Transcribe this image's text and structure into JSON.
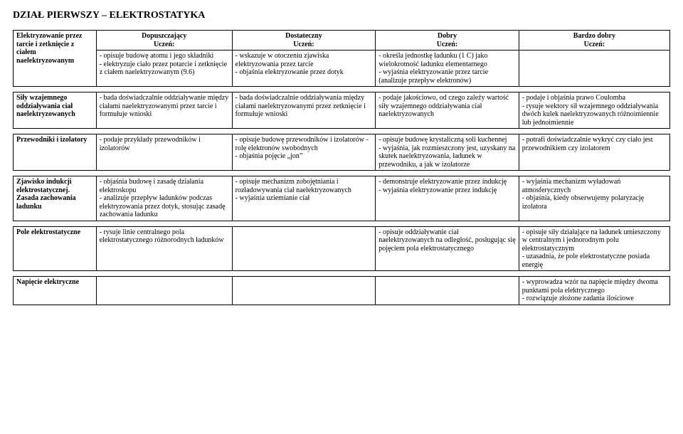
{
  "title": "DZIAŁ PIERWSZY – ELEKTROSTATYKA",
  "headers": {
    "dop": "Dopuszczający",
    "dst": "Dostateczny",
    "db": "Dobry",
    "bdb": "Bardzo dobry",
    "sub": "Uczeń:"
  },
  "rows": [
    {
      "topic": "Elektryzowanie przez tarcie i zetknięcie z ciałem naelektryzowanym",
      "c1": "- opisuje budowę atomu i jego składniki\n- elektryzuje ciało przez potarcie i zetknięcie z ciałem naelektryzowanym (9.6)",
      "c2": "- wskazuje w otoczeniu zjawiska elektryzowania przez tarcie\n- objaśnia elektryzowanie przez dotyk",
      "c3": "- określa jednostkę ładunku (1 C) jako wielokrotność ładunku elementarnego\n- wyjaśnia elektryzowanie przez tarcie (analizuje przepływ elektronów)",
      "c4": ""
    },
    {
      "topic": "Siły wzajemnego oddziaływania ciał naelektryzowanych",
      "c1": "- bada doświadczalnie oddziaływanie między ciałami naelektryzowanymi przez tarcie i formułuje wnioski",
      "c2": "- bada doświadczalnie oddziaływania między ciałami naelektryzowanymi przez zetknięcie i formułuje wnioski",
      "c3": "- podaje jakościowo, od czego zależy wartość siły wzajemnego oddziaływania ciał naelektryzowanych",
      "c4": "- podaje i objaśnia prawo Coulomba\n- rysuje wektory sił wzajemnego oddziaływania dwóch kulek naelektryzowanych różnoimiennie lub jednoimiennie"
    },
    {
      "topic": "Przewodniki i izolatory",
      "c1": "- podaje przykłady przewodników i izolatorów",
      "c2": "- opisuje budowę przewodników i izolatorów -rolę elektronów swobodnych\n- objaśnia pojęcie „jon”",
      "c3": "- opisuje budowę krystaliczną soli kuchennej\n- wyjaśnia, jak rozmieszczony jest, uzyskany na skutek naelektryzowania, ładunek w przewodniku, a jak w izolatorze",
      "c4": "- potrafi doświadczalnie wykryć czy ciało jest przewodnikiem czy izolatorem"
    },
    {
      "topic": "Zjawisko indukcji elektrostatycznej. Zasada zachowania ładunku",
      "c1": "- objaśnia budowę i zasadę działania elektroskopu\n- analizuje przepływ ładunków podczas elektryzowania przez dotyk, stosując zasadę zachowania ładunku",
      "c2": "- opisuje mechanizm zobojętniania i rozładowywania ciał naelektryzowanych\n- wyjaśnia uziemianie ciał",
      "c3": "- demonstruje elektryzowanie przez indukcję\n- wyjaśnia elektryzowanie przez indukcję",
      "c4": "- wyjaśnia mechanizm wyładowań atmosferycznych\n- objaśnia, kiedy obserwujemy polaryzację izolatora"
    },
    {
      "topic": "Pole elektrostatyczne",
      "c1": "- rysuje linie centralnego pola elektrostatycznego różnorodnych ładunków",
      "c2": "",
      "c3": "- opisuje oddziaływanie ciał naelektryzowanych na odległość, posługując się pojęciem pola elektrostatycznego",
      "c4": "- opisuje siły działające na ładunek umieszczony w centralnym i jednorodnym polu elektrostatycznym\n- uzasadnia, że pole elektrostatyczne posiada energię"
    },
    {
      "topic": "Napięcie elektryczne",
      "c1": "",
      "c2": "",
      "c3": "",
      "c4": "- wyprowadza wzór na napięcie między dwoma punktami pola elektrycznego\n- rozwiązuje złożone zadania ilościowe"
    }
  ]
}
